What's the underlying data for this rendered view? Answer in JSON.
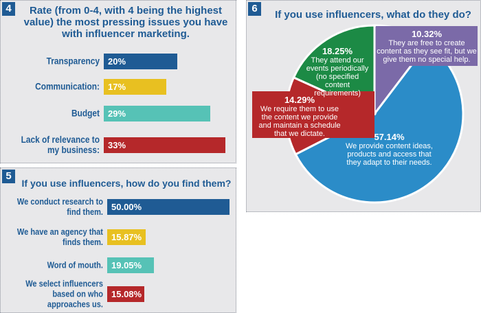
{
  "chart_data": [
    {
      "type": "bar",
      "number": "4",
      "title": "Rate (from 0-4, with 4 being the highest value) the most pressing issues you have with influencer marketing.",
      "categories": [
        "Transparency",
        "Communication:",
        "Budget",
        "Lack of relevance to my business:"
      ],
      "values": [
        20,
        17,
        29,
        33
      ],
      "labels": [
        "20%",
        "17%",
        "29%",
        "33%"
      ],
      "colors": [
        "#1f5b94",
        "#e8c021",
        "#56c2b6",
        "#b5282a"
      ]
    },
    {
      "type": "bar",
      "number": "5",
      "title": "If you use influencers, how do you find them?",
      "categories": [
        "We conduct research to find them.",
        "We have an agency that finds them.",
        "Word of mouth.",
        "We select influencers based on who approaches us."
      ],
      "values": [
        50.0,
        15.87,
        19.05,
        15.08
      ],
      "labels": [
        "50.00%",
        "15.87%",
        "19.05%",
        "15.08%"
      ],
      "colors": [
        "#1f5b94",
        "#e8c021",
        "#56c2b6",
        "#b5282a"
      ]
    },
    {
      "type": "pie",
      "number": "6",
      "title": "If you use influencers, what do they do?",
      "slices": [
        {
          "value": 10.32,
          "label": "10.32%",
          "text": "They are free to create content as they see fit, but we give them no special help.",
          "color": "#7b6aa8"
        },
        {
          "value": 57.14,
          "label": "57.14%",
          "text": "We provide content ideas, products and access that they adapt to their needs.",
          "color": "#2b8cc8"
        },
        {
          "value": 14.29,
          "label": "14.29%",
          "text": "We require them to use the content we provide and maintain a schedule that we dictate.",
          "color": "#b5282a"
        },
        {
          "value": 18.25,
          "label": "18.25%",
          "text": "They attend our events periodically (no specified content requirements)",
          "color": "#1c8a45"
        }
      ]
    }
  ]
}
